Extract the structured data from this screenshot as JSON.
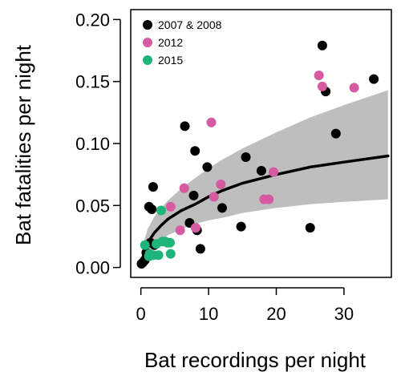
{
  "chart_data": {
    "type": "scatter",
    "xlabel": "Bat recordings per night",
    "ylabel": "Bat fatalities per night",
    "xlim": [
      -1.5,
      37
    ],
    "ylim": [
      -0.008,
      0.208
    ],
    "xticks": [
      0,
      10,
      20,
      30
    ],
    "yticks": [
      0.0,
      0.05,
      0.1,
      0.15,
      0.2
    ],
    "xtick_labels": [
      "0",
      "10",
      "20",
      "30"
    ],
    "ytick_labels": [
      "0.00",
      "0.05",
      "0.10",
      "0.15",
      "0.20"
    ],
    "legend": {
      "placement": "top-left"
    },
    "series": [
      {
        "name": "2007 & 2008",
        "color": "#000000",
        "points": [
          [
            0.1,
            0.003
          ],
          [
            0.3,
            0.004
          ],
          [
            0.6,
            0.006
          ],
          [
            0.8,
            0.012
          ],
          [
            1.2,
            0.049
          ],
          [
            1.4,
            0.02
          ],
          [
            1.6,
            0.047
          ],
          [
            1.8,
            0.065
          ],
          [
            2.0,
            0.018
          ],
          [
            6.5,
            0.114
          ],
          [
            7.2,
            0.036
          ],
          [
            7.8,
            0.058
          ],
          [
            8.0,
            0.094
          ],
          [
            8.3,
            0.03
          ],
          [
            8.8,
            0.015
          ],
          [
            9.8,
            0.081
          ],
          [
            12.0,
            0.048
          ],
          [
            14.8,
            0.033
          ],
          [
            15.5,
            0.089
          ],
          [
            17.8,
            0.078
          ],
          [
            25.0,
            0.032
          ],
          [
            26.8,
            0.179
          ],
          [
            27.3,
            0.142
          ],
          [
            28.8,
            0.108
          ],
          [
            34.4,
            0.152
          ]
        ]
      },
      {
        "name": "2012",
        "color": "#d65aa0",
        "points": [
          [
            4.4,
            0.049
          ],
          [
            5.8,
            0.03
          ],
          [
            6.4,
            0.064
          ],
          [
            8.1,
            0.032
          ],
          [
            10.4,
            0.117
          ],
          [
            10.8,
            0.057
          ],
          [
            11.8,
            0.067
          ],
          [
            18.2,
            0.055
          ],
          [
            18.9,
            0.055
          ],
          [
            19.6,
            0.077
          ],
          [
            26.3,
            0.155
          ],
          [
            26.8,
            0.146
          ],
          [
            31.5,
            0.145
          ]
        ]
      },
      {
        "name": "2015",
        "color": "#1fb57a",
        "points": [
          [
            0.6,
            0.018
          ],
          [
            1.2,
            0.009
          ],
          [
            1.3,
            0.011
          ],
          [
            1.8,
            0.01
          ],
          [
            2.3,
            0.019
          ],
          [
            2.6,
            0.01
          ],
          [
            3.0,
            0.046
          ],
          [
            3.2,
            0.021
          ],
          [
            3.6,
            0.021
          ],
          [
            3.9,
            0.02
          ],
          [
            4.3,
            0.02
          ],
          [
            4.4,
            0.011
          ]
        ]
      }
    ],
    "fit": {
      "color": "#000000",
      "points": [
        [
          0,
          0.001
        ],
        [
          0.5,
          0.013
        ],
        [
          1,
          0.02
        ],
        [
          2,
          0.028
        ],
        [
          3,
          0.034
        ],
        [
          4,
          0.039
        ],
        [
          6,
          0.046
        ],
        [
          8,
          0.051
        ],
        [
          10,
          0.057
        ],
        [
          12,
          0.062
        ],
        [
          15,
          0.068
        ],
        [
          20,
          0.075
        ],
        [
          25,
          0.081
        ],
        [
          30,
          0.085
        ],
        [
          36.5,
          0.09
        ]
      ]
    },
    "confidence_band": {
      "color": "#bebebe",
      "x": [
        0,
        0.5,
        1,
        2,
        3,
        4,
        6,
        8,
        10,
        12,
        15,
        20,
        25,
        30,
        36.5
      ],
      "upper": [
        0.003,
        0.022,
        0.031,
        0.041,
        0.048,
        0.054,
        0.064,
        0.072,
        0.08,
        0.087,
        0.096,
        0.109,
        0.121,
        0.131,
        0.143
      ],
      "lower": [
        0.0,
        0.007,
        0.012,
        0.018,
        0.022,
        0.026,
        0.031,
        0.035,
        0.038,
        0.04,
        0.044,
        0.048,
        0.051,
        0.053,
        0.055
      ]
    }
  }
}
